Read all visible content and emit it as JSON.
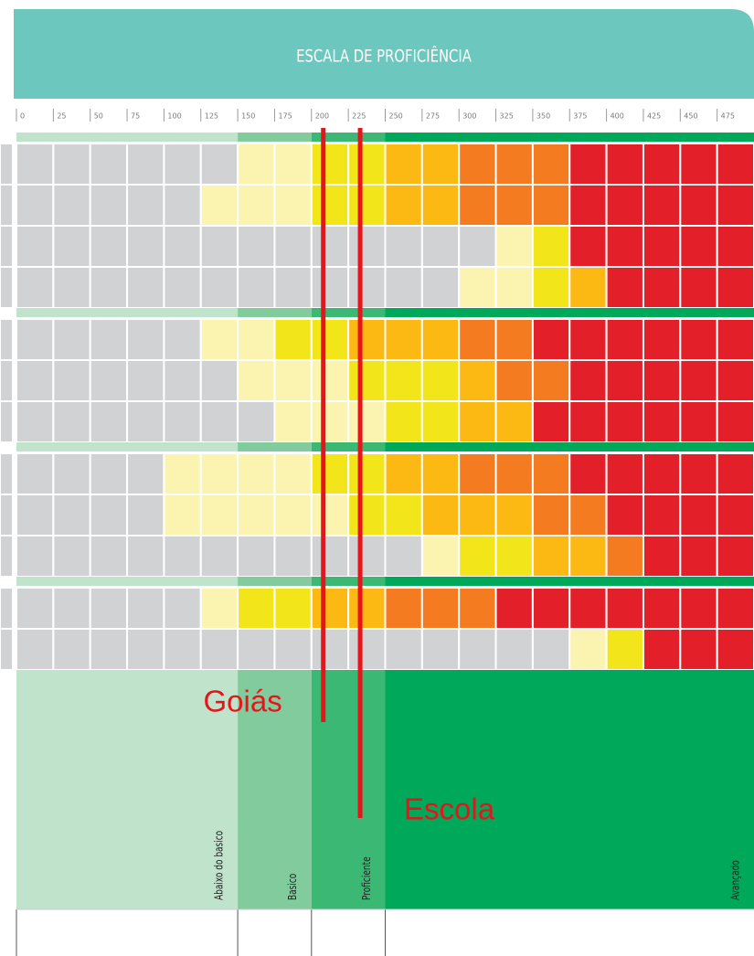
{
  "title": "ESCALA DE PROFICIÊNCIA",
  "xlim": [
    0,
    500
  ],
  "xticks": [
    0,
    25,
    50,
    75,
    100,
    125,
    150,
    175,
    200,
    225,
    250,
    275,
    300,
    325,
    350,
    375,
    400,
    425,
    450,
    475
  ],
  "levels": [
    {
      "label": "Abaixo do basico",
      "from": 0,
      "to": 150,
      "color": "#bfe3cb"
    },
    {
      "label": "Basico",
      "from": 150,
      "to": 200,
      "color": "#82cb9c"
    },
    {
      "label": "Proficiente",
      "from": 200,
      "to": 250,
      "color": "#3bb874"
    },
    {
      "label": "Avançado",
      "from": 250,
      "to": 500,
      "color": "#00a859"
    }
  ],
  "groups": [
    [
      [
        "#d1d2d4",
        "#d1d2d4",
        "#d1d2d4",
        "#d1d2d4",
        "#d1d2d4",
        "#d1d2d4",
        "#fbf4b0",
        "#fbf4b0",
        "#f2e61b",
        "#f2e61b",
        "#fdb913",
        "#fdb913",
        "#f47b20",
        "#f47b20",
        "#f47b20",
        "#e3202a",
        "#e3202a",
        "#e3202a",
        "#e3202a",
        "#e3202a"
      ],
      [
        "#d1d2d4",
        "#d1d2d4",
        "#d1d2d4",
        "#d1d2d4",
        "#d1d2d4",
        "#fbf4b0",
        "#fbf4b0",
        "#fbf4b0",
        "#f2e61b",
        "#f2e61b",
        "#fdb913",
        "#fdb913",
        "#f47b20",
        "#f47b20",
        "#f47b20",
        "#e3202a",
        "#e3202a",
        "#e3202a",
        "#e3202a",
        "#e3202a"
      ],
      [
        "#d1d2d4",
        "#d1d2d4",
        "#d1d2d4",
        "#d1d2d4",
        "#d1d2d4",
        "#d1d2d4",
        "#d1d2d4",
        "#d1d2d4",
        "#d1d2d4",
        "#d1d2d4",
        "#d1d2d4",
        "#d1d2d4",
        "#d1d2d4",
        "#fbf4b0",
        "#f2e61b",
        "#e3202a",
        "#e3202a",
        "#e3202a",
        "#e3202a",
        "#e3202a"
      ],
      [
        "#d1d2d4",
        "#d1d2d4",
        "#d1d2d4",
        "#d1d2d4",
        "#d1d2d4",
        "#d1d2d4",
        "#d1d2d4",
        "#d1d2d4",
        "#d1d2d4",
        "#d1d2d4",
        "#d1d2d4",
        "#d1d2d4",
        "#fbf4b0",
        "#fbf4b0",
        "#f2e61b",
        "#fdb913",
        "#e3202a",
        "#e3202a",
        "#e3202a",
        "#e3202a"
      ]
    ],
    [
      [
        "#d1d2d4",
        "#d1d2d4",
        "#d1d2d4",
        "#d1d2d4",
        "#d1d2d4",
        "#fbf4b0",
        "#fbf4b0",
        "#f2e61b",
        "#f2e61b",
        "#fdb913",
        "#fdb913",
        "#fdb913",
        "#f47b20",
        "#f47b20",
        "#e3202a",
        "#e3202a",
        "#e3202a",
        "#e3202a",
        "#e3202a",
        "#e3202a"
      ],
      [
        "#d1d2d4",
        "#d1d2d4",
        "#d1d2d4",
        "#d1d2d4",
        "#d1d2d4",
        "#d1d2d4",
        "#fbf4b0",
        "#fbf4b0",
        "#fbf4b0",
        "#f2e61b",
        "#f2e61b",
        "#f2e61b",
        "#fdb913",
        "#f47b20",
        "#f47b20",
        "#e3202a",
        "#e3202a",
        "#e3202a",
        "#e3202a",
        "#e3202a"
      ],
      [
        "#d1d2d4",
        "#d1d2d4",
        "#d1d2d4",
        "#d1d2d4",
        "#d1d2d4",
        "#d1d2d4",
        "#d1d2d4",
        "#fbf4b0",
        "#fbf4b0",
        "#fbf4b0",
        "#f2e61b",
        "#f2e61b",
        "#fdb913",
        "#fdb913",
        "#e3202a",
        "#e3202a",
        "#e3202a",
        "#e3202a",
        "#e3202a",
        "#e3202a"
      ]
    ],
    [
      [
        "#d1d2d4",
        "#d1d2d4",
        "#d1d2d4",
        "#d1d2d4",
        "#fbf4b0",
        "#fbf4b0",
        "#fbf4b0",
        "#fbf4b0",
        "#f2e61b",
        "#f2e61b",
        "#fdb913",
        "#fdb913",
        "#f47b20",
        "#f47b20",
        "#f47b20",
        "#e3202a",
        "#e3202a",
        "#e3202a",
        "#e3202a",
        "#e3202a"
      ],
      [
        "#d1d2d4",
        "#d1d2d4",
        "#d1d2d4",
        "#d1d2d4",
        "#fbf4b0",
        "#fbf4b0",
        "#fbf4b0",
        "#fbf4b0",
        "#fbf4b0",
        "#f2e61b",
        "#f2e61b",
        "#fdb913",
        "#fdb913",
        "#fdb913",
        "#f47b20",
        "#f47b20",
        "#e3202a",
        "#e3202a",
        "#e3202a",
        "#e3202a"
      ],
      [
        "#d1d2d4",
        "#d1d2d4",
        "#d1d2d4",
        "#d1d2d4",
        "#d1d2d4",
        "#d1d2d4",
        "#d1d2d4",
        "#d1d2d4",
        "#d1d2d4",
        "#d1d2d4",
        "#d1d2d4",
        "#fbf4b0",
        "#f2e61b",
        "#f2e61b",
        "#fdb913",
        "#fdb913",
        "#f47b20",
        "#e3202a",
        "#e3202a",
        "#e3202a"
      ]
    ],
    [
      [
        "#d1d2d4",
        "#d1d2d4",
        "#d1d2d4",
        "#d1d2d4",
        "#d1d2d4",
        "#fbf4b0",
        "#f2e61b",
        "#f2e61b",
        "#fdb913",
        "#fdb913",
        "#f47b20",
        "#f47b20",
        "#f47b20",
        "#e3202a",
        "#e3202a",
        "#e3202a",
        "#e3202a",
        "#e3202a",
        "#e3202a",
        "#e3202a"
      ],
      [
        "#d1d2d4",
        "#d1d2d4",
        "#d1d2d4",
        "#d1d2d4",
        "#d1d2d4",
        "#d1d2d4",
        "#d1d2d4",
        "#d1d2d4",
        "#d1d2d4",
        "#d1d2d4",
        "#d1d2d4",
        "#d1d2d4",
        "#d1d2d4",
        "#d1d2d4",
        "#d1d2d4",
        "#fbf4b0",
        "#f2e61b",
        "#e3202a",
        "#e3202a",
        "#e3202a"
      ]
    ]
  ],
  "markers": [
    {
      "label": "Goiás",
      "value": 208,
      "color": "#e8141b"
    },
    {
      "label": "Escola",
      "value": 233,
      "color": "#e8141b"
    }
  ]
}
